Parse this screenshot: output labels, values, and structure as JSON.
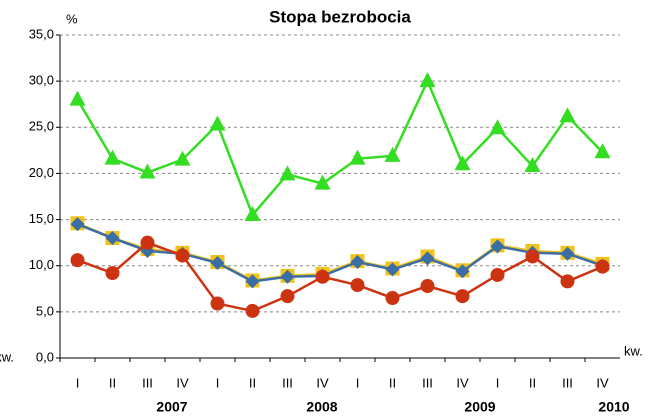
{
  "chart_data": {
    "type": "line",
    "title": "Stopa bezrobocia",
    "y_unit": "%",
    "x_unit": "kw.",
    "categories": [
      "I",
      "II",
      "III",
      "IV",
      "I",
      "II",
      "III",
      "IV",
      "I",
      "II",
      "III",
      "IV",
      "I",
      "II",
      "III",
      "IV"
    ],
    "years": [
      "2007",
      "2008",
      "2009",
      "2010"
    ],
    "series": [
      {
        "color": "#33dd22",
        "marker": "triangle",
        "values": [
          28.0,
          21.6,
          20.1,
          21.5,
          25.3,
          15.5,
          19.9,
          18.9,
          21.6,
          21.9,
          30.0,
          21.0,
          24.9,
          20.8,
          26.2,
          22.3
        ]
      },
      {
        "color": "#f2c21a",
        "marker": "square",
        "values": [
          14.6,
          13.0,
          11.8,
          11.4,
          10.4,
          8.4,
          8.9,
          9.1,
          10.5,
          9.7,
          11.0,
          9.5,
          12.2,
          11.6,
          11.4,
          10.2
        ]
      },
      {
        "color": "#3a6ea5",
        "marker": "diamond",
        "values": [
          14.5,
          13.0,
          11.6,
          11.3,
          10.3,
          8.3,
          8.8,
          8.9,
          10.4,
          9.6,
          10.8,
          9.4,
          12.1,
          11.4,
          11.3,
          10.0
        ]
      },
      {
        "color": "#cc3311",
        "marker": "circle",
        "values": [
          10.6,
          9.2,
          12.5,
          11.1,
          5.9,
          5.1,
          6.7,
          8.8,
          7.9,
          6.5,
          7.8,
          6.7,
          9.0,
          11.0,
          8.3,
          9.9
        ]
      }
    ],
    "ylim": [
      0,
      35
    ],
    "yticks": [
      {
        "value": 0,
        "label": "0,0"
      },
      {
        "value": 5,
        "label": "5,0"
      },
      {
        "value": 10,
        "label": "10,0"
      },
      {
        "value": 15,
        "label": "15,0"
      },
      {
        "value": 20,
        "label": "20,0"
      },
      {
        "value": 25,
        "label": "25,0"
      },
      {
        "value": 30,
        "label": "30,0"
      },
      {
        "value": 35,
        "label": "35,0"
      }
    ],
    "grid": true
  }
}
